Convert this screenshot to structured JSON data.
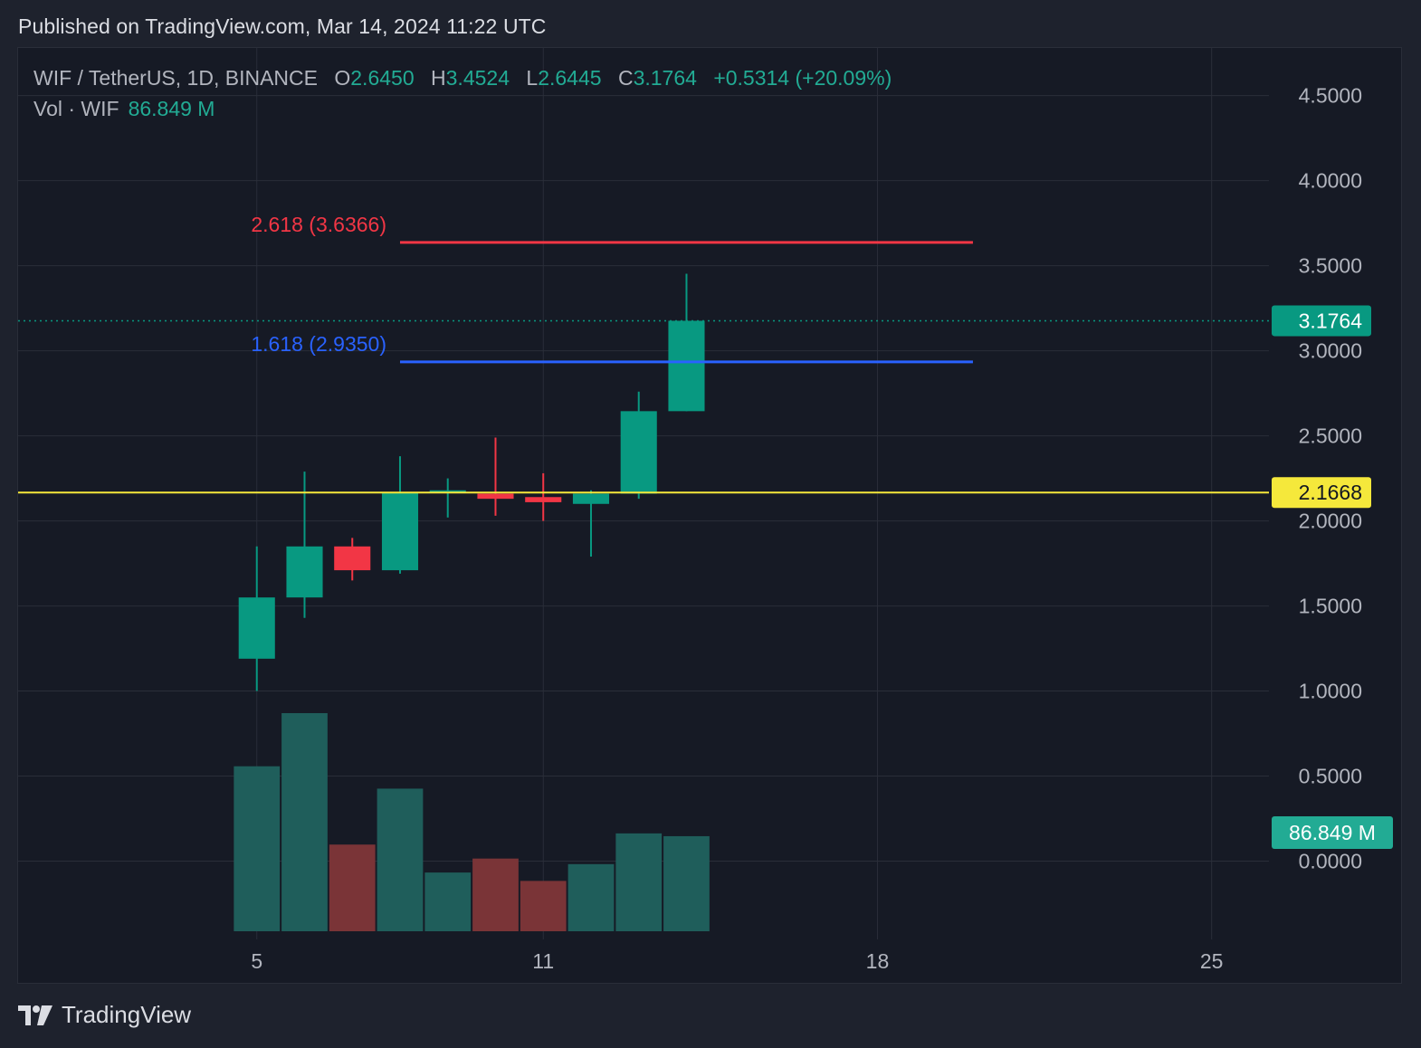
{
  "header": {
    "published_text": "Published on TradingView.com, Mar 14, 2024 11:22 UTC"
  },
  "legend": {
    "symbol": "WIF / TetherUS, 1D, BINANCE",
    "open_label": "O",
    "open": "2.6450",
    "high_label": "H",
    "high": "3.4524",
    "low_label": "L",
    "low": "2.6445",
    "close_label": "C",
    "close": "3.1764",
    "change": "+0.5314 (+20.09%)",
    "volume_label": "Vol · WIF",
    "volume": "86.849 M"
  },
  "footer": {
    "brand": "TradingView"
  },
  "colors": {
    "background": "#161a25",
    "grid": "#2a2e39",
    "up": "#089981",
    "down": "#f23645",
    "volume_up": "#1f5e5b",
    "volume_down": "#7a3437",
    "fib_2618": "#f23645",
    "fib_1618": "#2962ff",
    "horizontal_line": "#f5e83b",
    "axis_text": "#b2b5be"
  },
  "chart_data": {
    "type": "candlestick",
    "symbol": "WIF / TetherUS",
    "interval": "1D",
    "exchange": "BINANCE",
    "x_ticks": [
      "5",
      "11",
      "18",
      "25"
    ],
    "y_ticks": [
      "4.5000",
      "4.0000",
      "3.5000",
      "3.0000",
      "2.5000",
      "2.0000",
      "1.5000",
      "1.0000",
      "0.5000",
      "0.0000"
    ],
    "ylim": [
      -0.46,
      4.78
    ],
    "xlim_days": [
      0.0,
      26.2
    ],
    "candles": [
      {
        "day": 5,
        "open": 1.19,
        "high": 1.85,
        "low": 1.0,
        "close": 1.55,
        "volume": 0.59
      },
      {
        "day": 6,
        "open": 1.55,
        "high": 2.29,
        "low": 1.43,
        "close": 1.85,
        "volume": 0.78
      },
      {
        "day": 7,
        "open": 1.85,
        "high": 1.9,
        "low": 1.65,
        "close": 1.71,
        "volume": 0.31
      },
      {
        "day": 8,
        "open": 1.71,
        "high": 2.38,
        "low": 1.69,
        "close": 2.17,
        "volume": 0.51
      },
      {
        "day": 9,
        "open": 2.17,
        "high": 2.25,
        "low": 2.02,
        "close": 2.18,
        "volume": 0.21
      },
      {
        "day": 10,
        "open": 2.16,
        "high": 2.49,
        "low": 2.03,
        "close": 2.13,
        "volume": 0.26
      },
      {
        "day": 11,
        "open": 2.14,
        "high": 2.28,
        "low": 2.0,
        "close": 2.11,
        "volume": 0.18
      },
      {
        "day": 12,
        "open": 2.1,
        "high": 2.18,
        "low": 1.79,
        "close": 2.16,
        "volume": 0.24
      },
      {
        "day": 13,
        "open": 2.16,
        "high": 2.76,
        "low": 2.13,
        "close": 2.645,
        "volume": 0.35
      },
      {
        "day": 14,
        "open": 2.645,
        "high": 3.4524,
        "low": 2.6445,
        "close": 3.1764,
        "volume": 0.34
      }
    ],
    "fib_levels": [
      {
        "label": "2.618 (3.6366)",
        "ratio": 2.618,
        "price": 3.6366,
        "color": "#f23645",
        "from_day": 8,
        "to_day": 20
      },
      {
        "label": "1.618 (2.9350)",
        "ratio": 1.618,
        "price": 2.935,
        "color": "#2962ff",
        "from_day": 8,
        "to_day": 20
      }
    ],
    "horizontal_line": {
      "price": 2.1668,
      "label": "2.1668"
    },
    "last_price": {
      "price": 3.1764,
      "label": "3.1764"
    },
    "last_volume": {
      "label": "86.849 M"
    },
    "grid": true
  }
}
